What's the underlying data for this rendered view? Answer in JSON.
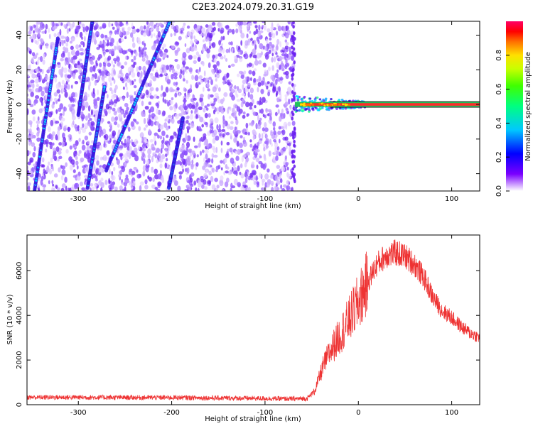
{
  "title": "C2E3.2024.079.20.31.G19",
  "chart_data": [
    {
      "type": "heatmap",
      "xlabel": "Height of straight line (km)",
      "ylabel": "Frequency (Hz)",
      "xlim": [
        -355,
        130
      ],
      "ylim": [
        -50,
        48
      ],
      "xticks": [
        -300,
        -200,
        -100,
        0,
        100
      ],
      "yticks": [
        -40,
        -20,
        0,
        20,
        40
      ],
      "grid": false,
      "noise_region_x": [
        -355,
        -68
      ],
      "bright_tracks": [
        {
          "x": [
            -347,
            -322
          ],
          "y": [
            -50,
            38
          ]
        },
        {
          "x": [
            -300,
            -285
          ],
          "y": [
            -6,
            48
          ]
        },
        {
          "x": [
            -270,
            -202
          ],
          "y": [
            -38,
            48
          ]
        },
        {
          "x": [
            -290,
            -272
          ],
          "y": [
            -48,
            10
          ]
        },
        {
          "x": [
            -203,
            -188
          ],
          "y": [
            -48,
            -8
          ]
        }
      ],
      "carrier": {
        "x": [
          -68,
          130
        ],
        "y": 0
      },
      "colorbar": {
        "label": "Normalized spectral amplitude",
        "range": [
          0.0,
          1.0
        ],
        "ticks": [
          "0.0",
          "0.2",
          "0.4",
          "0.6",
          "0.8"
        ],
        "colormap": "rainbow"
      }
    },
    {
      "type": "line",
      "xlabel": "Height of straight line (km)",
      "ylabel": "SNR (10 * v/v)",
      "xlim": [
        -355,
        130
      ],
      "ylim": [
        0,
        7600
      ],
      "xticks": [
        -300,
        -200,
        -100,
        0,
        100
      ],
      "yticks": [
        0,
        2000,
        4000,
        6000
      ],
      "color": "#ee3333",
      "grid": false,
      "series": [
        {
          "x": [
            -355,
            -300,
            -250,
            -200,
            -150,
            -100,
            -70,
            -55,
            -47,
            -42,
            -38,
            -30,
            -20,
            -10,
            0,
            10,
            20,
            30,
            40,
            50,
            60,
            70,
            80,
            90,
            100,
            110,
            120,
            130
          ],
          "y": [
            330,
            330,
            320,
            320,
            300,
            280,
            260,
            280,
            600,
            1200,
            1700,
            2400,
            3100,
            3800,
            4600,
            5500,
            6300,
            6700,
            6800,
            6650,
            6300,
            5700,
            4800,
            4200,
            3900,
            3500,
            3200,
            3000
          ]
        }
      ]
    }
  ]
}
